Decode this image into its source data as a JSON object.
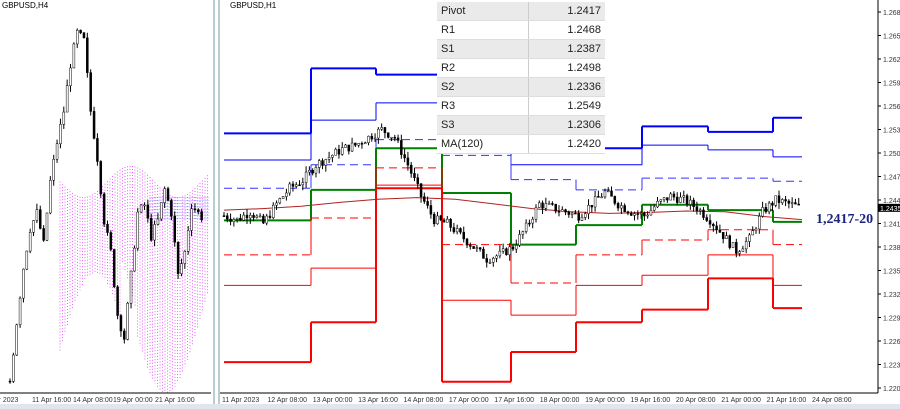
{
  "left_chart": {
    "title": "GBPUSD,H4",
    "x_labels": [
      "Apr 2023",
      "11 Apr 16:00",
      "14 Apr 08:00",
      "19 Apr 00:00",
      "21 Apr 16:00"
    ],
    "closes": [
      1.2215,
      1.229,
      1.236,
      1.241,
      1.243,
      1.239,
      1.247,
      1.252,
      1.256,
      1.262,
      1.266,
      1.265,
      1.256,
      1.25,
      1.242,
      1.238,
      1.23,
      1.227,
      1.235,
      1.243,
      1.244,
      1.24,
      1.242,
      1.246,
      1.243,
      1.235,
      1.238,
      1.244,
      1.243,
      1.242
    ]
  },
  "right_chart": {
    "title": "GBPUSD,H1",
    "current_price": "1.2435",
    "y_ticks": [
      "1.2685",
      "1.2655",
      "1.2625",
      "1.2595",
      "1.2565",
      "1.2535",
      "1.2505",
      "1.2475",
      "1.2445",
      "1.2415",
      "1.2385",
      "1.2355",
      "1.2325",
      "1.2295",
      "1.2265",
      "1.2235",
      "1.2205"
    ],
    "y_range": [
      1.2205,
      1.2685
    ],
    "x_labels": [
      "11 Apr 2023",
      "12 Apr 08:00",
      "13 Apr 00:00",
      "13 Apr 16:00",
      "14 Apr 08:00",
      "17 Apr 00:00",
      "17 Apr 16:00",
      "18 Apr 00:00",
      "19 Apr 00:00",
      "19 Apr 16:00",
      "20 Apr 08:00",
      "21 Apr 00:00",
      "21 Apr 16:00",
      "24 Apr 08:00"
    ],
    "levels": [
      {
        "name": "R3",
        "color": "#0000ff",
        "style": "thick",
        "values": [
          1.253,
          1.2613,
          1.2605,
          1.2566,
          1.2515,
          1.2511,
          1.2539,
          1.2532,
          1.255
        ]
      },
      {
        "name": "R2",
        "color": "#0000ff",
        "style": "thin",
        "values": [
          1.2496,
          1.2547,
          1.2569,
          1.2541,
          1.249,
          1.249,
          1.2515,
          1.2509,
          1.25
        ]
      },
      {
        "name": "R1",
        "color": "#3333ff",
        "style": "dashed",
        "values": [
          1.246,
          1.249,
          1.2522,
          1.2502,
          1.2471,
          1.2458,
          1.2473,
          1.2473,
          1.2469
        ]
      },
      {
        "name": "Pivot",
        "color": "#008000",
        "style": "thick",
        "values": [
          1.2419,
          1.2458,
          1.2511,
          1.2454,
          1.2388,
          1.2413,
          1.2439,
          1.2432,
          1.2417
        ]
      },
      {
        "name": "S1",
        "color": "#ff0000",
        "style": "dashed",
        "values": [
          1.2375,
          1.2422,
          1.2486,
          1.2388,
          1.2339,
          1.2375,
          1.2394,
          1.2407,
          1.2388
        ]
      },
      {
        "name": "S2",
        "color": "#ff0000",
        "style": "thin",
        "values": [
          1.2336,
          1.2358,
          1.2464,
          1.2317,
          1.2298,
          1.2336,
          1.2349,
          1.2375,
          1.2336
        ]
      },
      {
        "name": "S3",
        "color": "#ff0000",
        "style": "thick",
        "values": [
          1.2238,
          1.2289,
          1.246,
          1.2213,
          1.2251,
          1.2289,
          1.2305,
          1.2345,
          1.2307
        ]
      }
    ],
    "ma_values": [
      1.2432,
      1.2434,
      1.2437,
      1.2442,
      1.2446,
      1.2448,
      1.2446,
      1.244,
      1.2434,
      1.243,
      1.2428,
      1.2429,
      1.2431,
      1.243,
      1.2424,
      1.242
    ],
    "closes": [
      1.2425,
      1.242,
      1.243,
      1.2415,
      1.244,
      1.246,
      1.247,
      1.249,
      1.25,
      1.251,
      1.2515,
      1.2525,
      1.2535,
      1.2525,
      1.249,
      1.245,
      1.242,
      1.2415,
      1.24,
      1.2385,
      1.237,
      1.2375,
      1.2385,
      1.241,
      1.244,
      1.2435,
      1.243,
      1.2425,
      1.244,
      1.2455,
      1.244,
      1.243,
      1.2425,
      1.244,
      1.245,
      1.2445,
      1.2435,
      1.242,
      1.24,
      1.238,
      1.2395,
      1.243,
      1.2445,
      1.244,
      1.2435
    ],
    "table": [
      [
        "Pivot",
        "1.2417"
      ],
      [
        "R1",
        "1.2468"
      ],
      [
        "S1",
        "1.2387"
      ],
      [
        "R2",
        "1.2498"
      ],
      [
        "S2",
        "1.2336"
      ],
      [
        "R3",
        "1.2549"
      ],
      [
        "S3",
        "1.2306"
      ],
      [
        "MA(120)",
        "1.2420"
      ]
    ],
    "annotation": "1,2417-20"
  }
}
